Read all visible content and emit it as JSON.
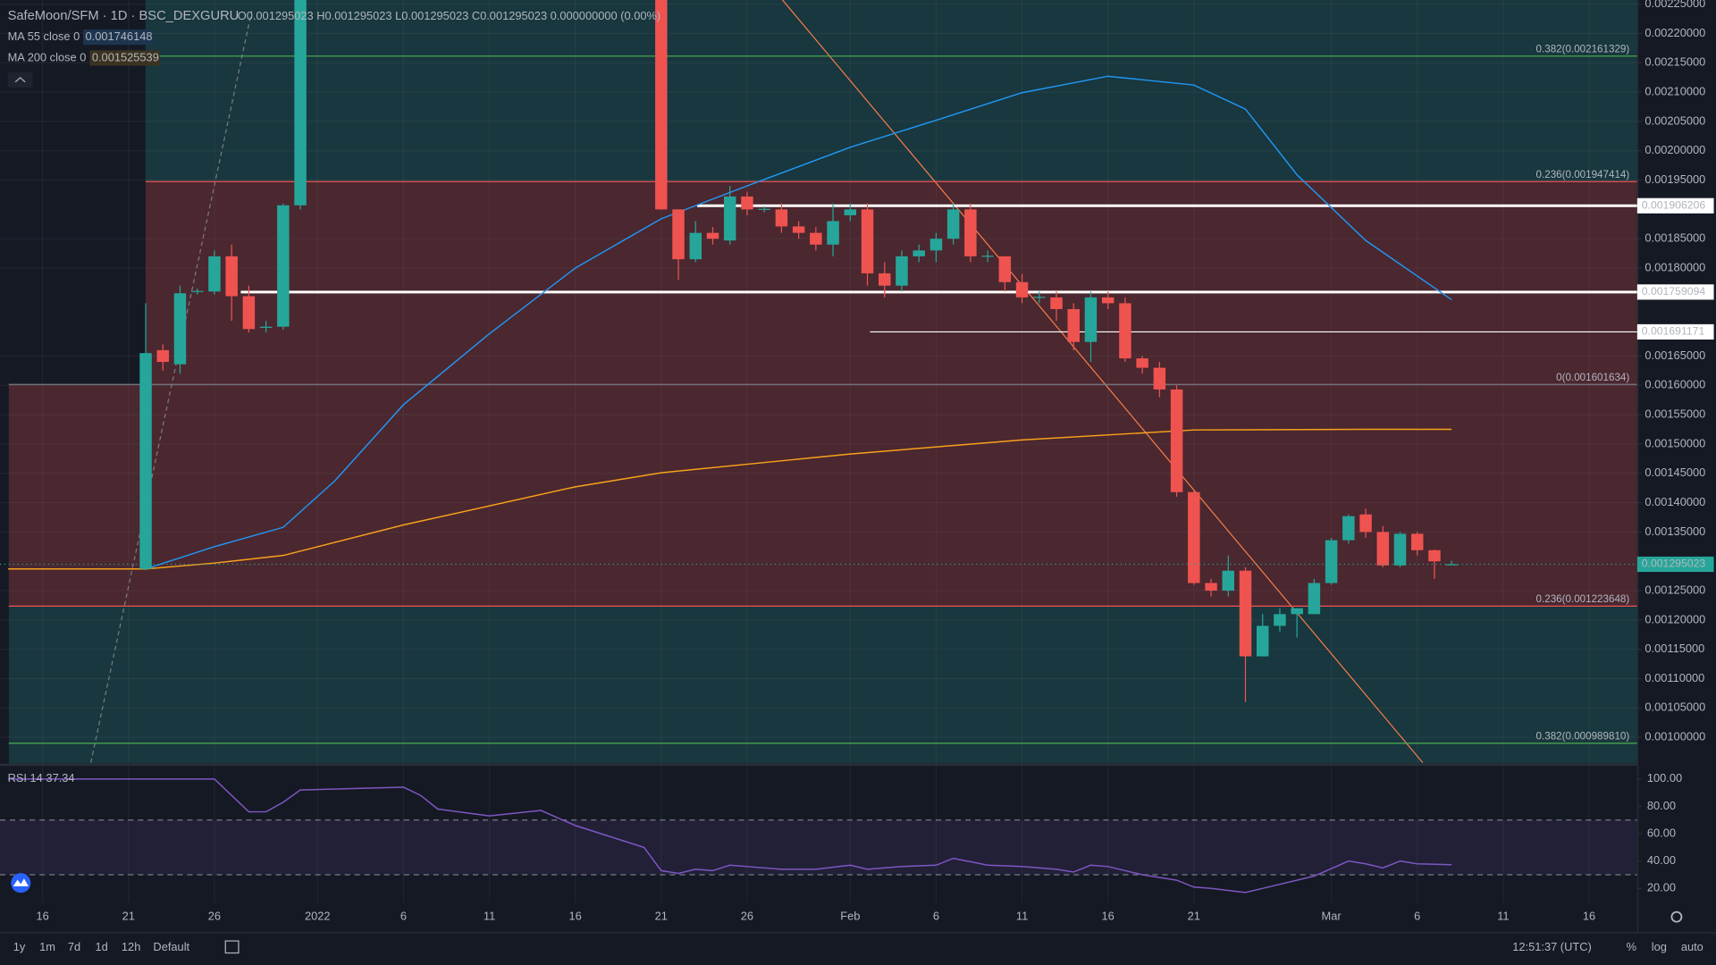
{
  "chart_data": {
    "type": "candlestick",
    "title": "SafeMoon/SFM · 1D · BSC_DEXGURU",
    "ohlc_text": "O0.001295023 H0.001295023 L0.001295023 C0.001295023 0.000000000 (0.00%)",
    "up_color": "#26a69a",
    "down_color": "#ef5350",
    "xlim": [
      -2.48,
      92.8
    ],
    "xticks": [
      {
        "value": 0,
        "label": "16"
      },
      {
        "value": 5,
        "label": "21"
      },
      {
        "value": 10,
        "label": "26"
      },
      {
        "value": 16,
        "label": "2022"
      },
      {
        "value": 21,
        "label": "6"
      },
      {
        "value": 26,
        "label": "11"
      },
      {
        "value": 31,
        "label": "16"
      },
      {
        "value": 36,
        "label": "21"
      },
      {
        "value": 41,
        "label": "26"
      },
      {
        "value": 47,
        "label": "Feb"
      },
      {
        "value": 52,
        "label": "6"
      },
      {
        "value": 57,
        "label": "11"
      },
      {
        "value": 62,
        "label": "16"
      },
      {
        "value": 67,
        "label": "21"
      },
      {
        "value": 75,
        "label": "Mar"
      },
      {
        "value": 80,
        "label": "6"
      },
      {
        "value": 85,
        "label": "11"
      },
      {
        "value": 90,
        "label": "16"
      }
    ],
    "ylim": [
      0.000955,
      0.002257
    ],
    "yticks": [
      {
        "value": 0.001,
        "label": "0.00100000"
      },
      {
        "value": 0.00105,
        "label": "0.00105000"
      },
      {
        "value": 0.0011,
        "label": "0.00110000"
      },
      {
        "value": 0.00115,
        "label": "0.00115000"
      },
      {
        "value": 0.0012,
        "label": "0.00120000"
      },
      {
        "value": 0.00125,
        "label": "0.00125000"
      },
      {
        "value": 0.00135,
        "label": "0.00135000"
      },
      {
        "value": 0.0014,
        "label": "0.00140000"
      },
      {
        "value": 0.00145,
        "label": "0.00145000"
      },
      {
        "value": 0.0015,
        "label": "0.00150000"
      },
      {
        "value": 0.00155,
        "label": "0.00155000"
      },
      {
        "value": 0.0016,
        "label": "0.00160000"
      },
      {
        "value": 0.00165,
        "label": "0.00165000"
      },
      {
        "value": 0.0018,
        "label": "0.00180000"
      },
      {
        "value": 0.00185,
        "label": "0.00185000"
      },
      {
        "value": 0.00195,
        "label": "0.00195000"
      },
      {
        "value": 0.002,
        "label": "0.00200000"
      },
      {
        "value": 0.00205,
        "label": "0.00205000"
      },
      {
        "value": 0.0021,
        "label": "0.00210000"
      },
      {
        "value": 0.00215,
        "label": "0.00215000"
      },
      {
        "value": 0.0022,
        "label": "0.00220000"
      },
      {
        "value": 0.00225,
        "label": "0.00225000"
      }
    ],
    "grid": true,
    "candles": [
      [
        6,
        0.001287,
        0.00174,
        0.001285,
        0.001655
      ],
      [
        7,
        0.00166,
        0.00167,
        0.001625,
        0.00164
      ],
      [
        8,
        0.001636,
        0.00177,
        0.00162,
        0.001757
      ],
      [
        9,
        0.00176,
        0.001765,
        0.001755,
        0.001761
      ],
      [
        10,
        0.00176,
        0.00183,
        0.001755,
        0.00182
      ],
      [
        11,
        0.00182,
        0.00184,
        0.00171,
        0.001752
      ],
      [
        12,
        0.001752,
        0.00177,
        0.00169,
        0.001696
      ],
      [
        13,
        0.001698,
        0.00171,
        0.00169,
        0.0017
      ],
      [
        14,
        0.0017,
        0.00191,
        0.001695,
        0.001907
      ],
      [
        15,
        0.001907,
        0.0024,
        0.0019,
        0.00235
      ],
      [
        36,
        0.00235,
        0.00236,
        0.0019,
        0.0019
      ],
      [
        37,
        0.0019,
        0.0019,
        0.00178,
        0.001815
      ],
      [
        38,
        0.001815,
        0.00188,
        0.00181,
        0.00186
      ],
      [
        39,
        0.00186,
        0.00187,
        0.00184,
        0.00185
      ],
      [
        40,
        0.001847,
        0.00194,
        0.00184,
        0.001922
      ],
      [
        41,
        0.001922,
        0.00193,
        0.00189,
        0.0019
      ],
      [
        42,
        0.0019,
        0.001905,
        0.001895,
        0.001901
      ],
      [
        43,
        0.0019,
        0.00191,
        0.00186,
        0.001871
      ],
      [
        44,
        0.001871,
        0.00188,
        0.00185,
        0.00186
      ],
      [
        45,
        0.00186,
        0.00187,
        0.00183,
        0.00184
      ],
      [
        46,
        0.00184,
        0.00191,
        0.00182,
        0.00188
      ],
      [
        47,
        0.00189,
        0.00191,
        0.00188,
        0.0019
      ],
      [
        48,
        0.0019,
        0.00191,
        0.00177,
        0.001791
      ],
      [
        49,
        0.001791,
        0.00181,
        0.00175,
        0.00177
      ],
      [
        50,
        0.00177,
        0.00183,
        0.00176,
        0.00182
      ],
      [
        51,
        0.00182,
        0.00184,
        0.00181,
        0.00183
      ],
      [
        52,
        0.00183,
        0.00186,
        0.00181,
        0.00185
      ],
      [
        53,
        0.00185,
        0.00191,
        0.00184,
        0.0019
      ],
      [
        54,
        0.0019,
        0.00191,
        0.00181,
        0.00182
      ],
      [
        55,
        0.00182,
        0.00183,
        0.00181,
        0.001821
      ],
      [
        56,
        0.00182,
        0.00182,
        0.00176,
        0.001776
      ],
      [
        57,
        0.001776,
        0.00179,
        0.00174,
        0.00175
      ],
      [
        58,
        0.00175,
        0.00176,
        0.00174,
        0.001751
      ],
      [
        59,
        0.00175,
        0.00176,
        0.00171,
        0.00173
      ],
      [
        60,
        0.00173,
        0.00174,
        0.00166,
        0.001674
      ],
      [
        61,
        0.001674,
        0.00176,
        0.00164,
        0.00175
      ],
      [
        62,
        0.00175,
        0.00176,
        0.00173,
        0.00174
      ],
      [
        63,
        0.00174,
        0.00175,
        0.00164,
        0.001646
      ],
      [
        64,
        0.001646,
        0.00165,
        0.00162,
        0.00163
      ],
      [
        65,
        0.00163,
        0.00164,
        0.00158,
        0.001593
      ],
      [
        66,
        0.001593,
        0.0016,
        0.00141,
        0.001418
      ],
      [
        67,
        0.001418,
        0.00142,
        0.00126,
        0.001263
      ],
      [
        68,
        0.001263,
        0.00127,
        0.00124,
        0.00125
      ],
      [
        69,
        0.00125,
        0.00131,
        0.00124,
        0.001284
      ],
      [
        70,
        0.001284,
        0.00129,
        0.00106,
        0.001138
      ],
      [
        71,
        0.001138,
        0.00121,
        0.001138,
        0.00119
      ],
      [
        72,
        0.00119,
        0.00122,
        0.00118,
        0.00121
      ],
      [
        73,
        0.00121,
        0.00122,
        0.00117,
        0.00122
      ],
      [
        74,
        0.00121,
        0.00127,
        0.00121,
        0.001263
      ],
      [
        75,
        0.001263,
        0.00134,
        0.00126,
        0.001336
      ],
      [
        76,
        0.001336,
        0.00138,
        0.00133,
        0.001377
      ],
      [
        77,
        0.00138,
        0.00139,
        0.00134,
        0.00135
      ],
      [
        78,
        0.00135,
        0.00136,
        0.00129,
        0.001293
      ],
      [
        79,
        0.001293,
        0.00135,
        0.00129,
        0.001347
      ],
      [
        80,
        0.001347,
        0.00135,
        0.00131,
        0.001319
      ],
      [
        81,
        0.001319,
        0.00132,
        0.00127,
        0.0013
      ],
      [
        82,
        0.001295023,
        0.001301,
        0.001294,
        0.001295023
      ]
    ],
    "series": [
      {
        "name": "MA 55 close 0",
        "color": "#2196f3",
        "last": 0.001746148,
        "x": [
          -2,
          6,
          10,
          14,
          17,
          21,
          26,
          31,
          36,
          41,
          47,
          52,
          57,
          62,
          67,
          70,
          73,
          77,
          82
        ],
        "values": [
          0.001287,
          0.001287,
          0.001325,
          0.001358,
          0.001437,
          0.001567,
          0.001688,
          0.0018,
          0.001884,
          0.00194,
          0.002006,
          0.002052,
          0.002099,
          0.002127,
          0.002112,
          0.002071,
          0.001959,
          0.001847,
          0.001746
        ]
      },
      {
        "name": "MA 200 close 0",
        "color": "#f7a21b",
        "last": 0.001525539,
        "x": [
          -2,
          6,
          10,
          14,
          21,
          31,
          36,
          47,
          57,
          67,
          77,
          82
        ],
        "values": [
          0.001287,
          0.001287,
          0.001297,
          0.00131,
          0.001362,
          0.001427,
          0.001451,
          0.001483,
          0.001507,
          0.001524,
          0.001525,
          0.001525
        ]
      }
    ],
    "fib_levels": [
      {
        "value": 0.002161329,
        "label": "0.382(0.002161329)",
        "color": "#4caf50"
      },
      {
        "value": 0.001947414,
        "label": "0.236(0.001947414)",
        "color": "#f05350"
      },
      {
        "value": 0.001601634,
        "label": "0(0.001601634)",
        "color": "#787b86"
      },
      {
        "value": 0.001223648,
        "label": "0.236(0.001223648)",
        "color": "#f05350"
      },
      {
        "value": 0.00098981,
        "label": "0.382(0.000989810)",
        "color": "#4caf50"
      }
    ],
    "hlines": [
      0.001906206,
      0.001759094,
      0.001691171
    ],
    "last_price": 0.001295023,
    "rsi": {
      "name": "RSI 14",
      "color": "#7e57c2",
      "last": 37.34,
      "ylim": [
        9.6,
        109.6
      ],
      "yticks": [
        {
          "value": 20,
          "label": "20.00"
        },
        {
          "value": 40,
          "label": "40.00"
        },
        {
          "value": 60,
          "label": "60.00"
        },
        {
          "value": 80,
          "label": "80.00"
        },
        {
          "value": 100,
          "label": "100.00"
        }
      ],
      "bands": [
        30,
        70
      ],
      "x": [
        -2,
        6,
        10,
        11,
        12,
        13,
        14,
        15,
        21,
        22,
        23,
        26,
        29,
        31,
        35,
        36,
        37,
        38,
        39,
        40,
        41,
        43,
        45,
        47,
        48,
        50,
        52,
        53,
        55,
        57,
        59,
        60,
        61,
        62,
        64,
        66,
        67,
        68,
        70,
        72,
        74,
        76,
        77,
        78,
        79,
        80,
        82
      ],
      "values": [
        100,
        100,
        100,
        88,
        76,
        76,
        83,
        92,
        94,
        88,
        78,
        73,
        77,
        66,
        50,
        33,
        31,
        34,
        33,
        37,
        36,
        34,
        34,
        37,
        34,
        36,
        37,
        42,
        37,
        36,
        34,
        32,
        37,
        36,
        30,
        26,
        21,
        20,
        17,
        23,
        29,
        40,
        38,
        35,
        40,
        38,
        37.34
      ]
    }
  },
  "toolbar": {
    "ranges": [
      "1y",
      "1m",
      "7d",
      "1d",
      "12h",
      "Default"
    ],
    "time": "12:51:37 (UTC)",
    "scale": [
      "%",
      "log",
      "auto"
    ]
  }
}
